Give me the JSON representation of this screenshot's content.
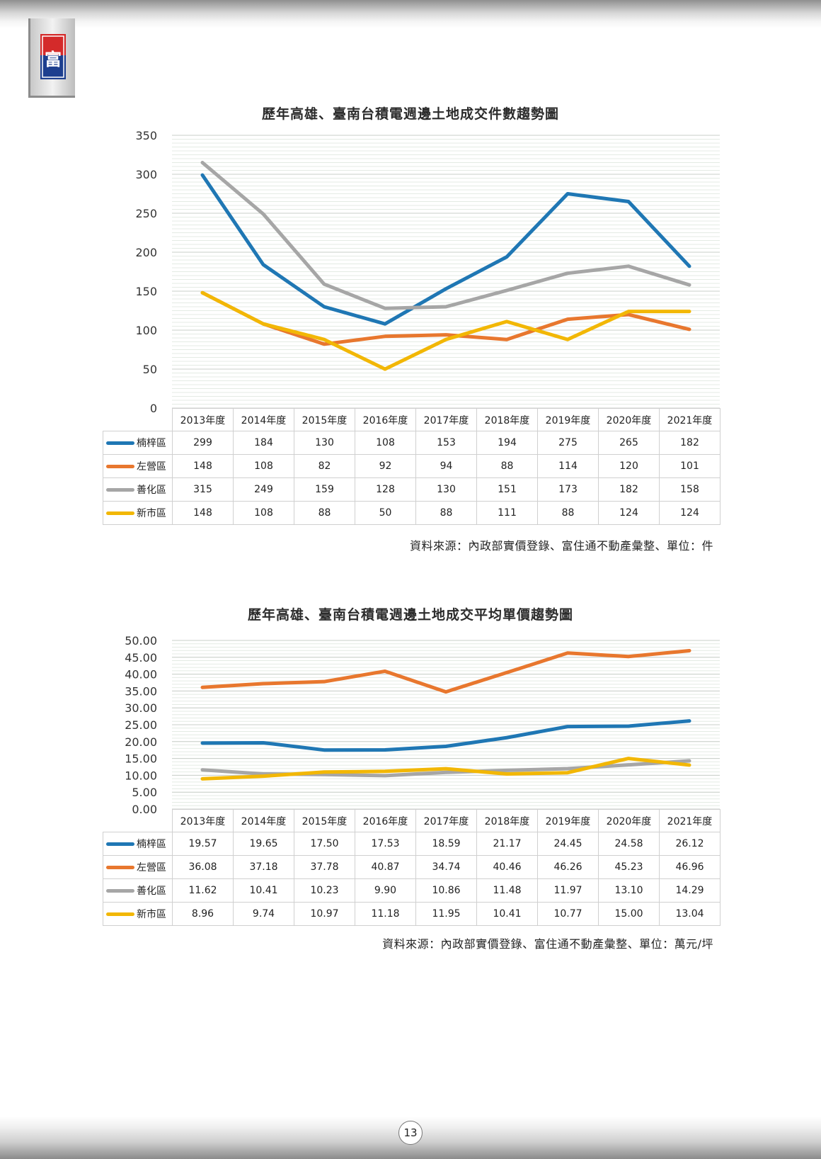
{
  "page_number": "13",
  "logo": {
    "name": "company-logo",
    "glyph": "富"
  },
  "colors": {
    "series": [
      "#1f77b4",
      "#e8772e",
      "#a6a6a6",
      "#f2b705"
    ]
  },
  "chart_data": [
    {
      "type": "line",
      "title": "歷年高雄、臺南台積電週邊土地成交件數趨勢圖",
      "categories": [
        "2013年度",
        "2014年度",
        "2015年度",
        "2016年度",
        "2017年度",
        "2018年度",
        "2019年度",
        "2020年度",
        "2021年度"
      ],
      "ylim": [
        0,
        350
      ],
      "yticks": [
        "0",
        "50",
        "100",
        "150",
        "200",
        "250",
        "300",
        "350"
      ],
      "grid": true,
      "legend": "table-left",
      "series": [
        {
          "name": "楠梓區",
          "values": [
            299,
            184,
            130,
            108,
            153,
            194,
            275,
            265,
            182
          ],
          "labels": [
            "299",
            "184",
            "130",
            "108",
            "153",
            "194",
            "275",
            "265",
            "182"
          ]
        },
        {
          "name": "左營區",
          "values": [
            148,
            108,
            82,
            92,
            94,
            88,
            114,
            120,
            101
          ],
          "labels": [
            "148",
            "108",
            "82",
            "92",
            "94",
            "88",
            "114",
            "120",
            "101"
          ]
        },
        {
          "name": "善化區",
          "values": [
            315,
            249,
            159,
            128,
            130,
            151,
            173,
            182,
            158
          ],
          "labels": [
            "315",
            "249",
            "159",
            "128",
            "130",
            "151",
            "173",
            "182",
            "158"
          ]
        },
        {
          "name": "新市區",
          "values": [
            148,
            108,
            88,
            50,
            88,
            111,
            88,
            124,
            124
          ],
          "labels": [
            "148",
            "108",
            "88",
            "50",
            "88",
            "111",
            "88",
            "124",
            "124"
          ]
        }
      ],
      "source": "資料來源：內政部實價登錄、富住通不動產彙整、單位：件"
    },
    {
      "type": "line",
      "title": "歷年高雄、臺南台積電週邊土地成交平均單價趨勢圖",
      "categories": [
        "2013年度",
        "2014年度",
        "2015年度",
        "2016年度",
        "2017年度",
        "2018年度",
        "2019年度",
        "2020年度",
        "2021年度"
      ],
      "ylim": [
        0,
        50
      ],
      "yticks": [
        "0.00",
        "5.00",
        "10.00",
        "15.00",
        "20.00",
        "25.00",
        "30.00",
        "35.00",
        "40.00",
        "45.00",
        "50.00"
      ],
      "grid": true,
      "legend": "table-left",
      "series": [
        {
          "name": "楠梓區",
          "values": [
            19.57,
            19.65,
            17.5,
            17.53,
            18.59,
            21.17,
            24.45,
            24.58,
            26.12
          ],
          "labels": [
            "19.57",
            "19.65",
            "17.50",
            "17.53",
            "18.59",
            "21.17",
            "24.45",
            "24.58",
            "26.12"
          ]
        },
        {
          "name": "左營區",
          "values": [
            36.08,
            37.18,
            37.78,
            40.87,
            34.74,
            40.46,
            46.26,
            45.23,
            46.96
          ],
          "labels": [
            "36.08",
            "37.18",
            "37.78",
            "40.87",
            "34.74",
            "40.46",
            "46.26",
            "45.23",
            "46.96"
          ]
        },
        {
          "name": "善化區",
          "values": [
            11.62,
            10.41,
            10.23,
            9.9,
            10.86,
            11.48,
            11.97,
            13.1,
            14.29
          ],
          "labels": [
            "11.62",
            "10.41",
            "10.23",
            "9.90",
            "10.86",
            "11.48",
            "11.97",
            "13.10",
            "14.29"
          ]
        },
        {
          "name": "新市區",
          "values": [
            8.96,
            9.74,
            10.97,
            11.18,
            11.95,
            10.41,
            10.77,
            15.0,
            13.04
          ],
          "labels": [
            "8.96",
            "9.74",
            "10.97",
            "11.18",
            "11.95",
            "10.41",
            "10.77",
            "15.00",
            "13.04"
          ]
        }
      ],
      "source": "資料來源：內政部實價登錄、富住通不動產彙整、單位：萬元/坪"
    }
  ]
}
